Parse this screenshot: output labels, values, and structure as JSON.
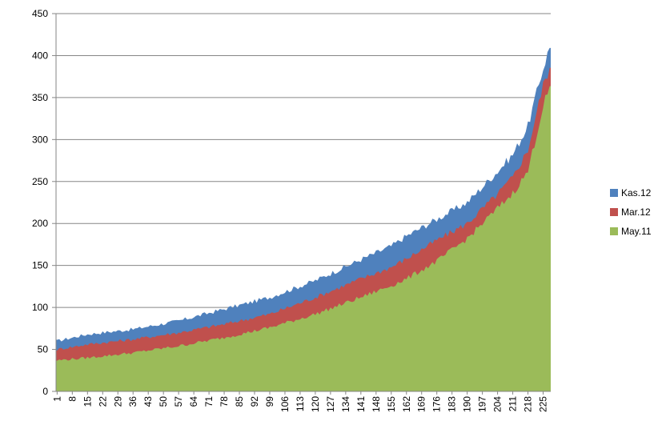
{
  "chart_data": {
    "type": "area",
    "stacked": false,
    "x_start": 1,
    "x_end": 228,
    "x_tick_labels": [
      "1",
      "8",
      "15",
      "22",
      "29",
      "36",
      "43",
      "50",
      "57",
      "64",
      "71",
      "78",
      "85",
      "92",
      "99",
      "106",
      "113",
      "120",
      "127",
      "134",
      "141",
      "148",
      "155",
      "162",
      "169",
      "176",
      "183",
      "190",
      "197",
      "204",
      "211",
      "218",
      "225"
    ],
    "y_ticks": [
      "0",
      "50",
      "100",
      "150",
      "200",
      "250",
      "300",
      "350",
      "400",
      "450"
    ],
    "ylim": [
      0,
      450
    ],
    "grid": true,
    "legend_position": "right",
    "series": [
      {
        "name": "Kas.12",
        "color": "#4f81bd",
        "points": [
          [
            1,
            60
          ],
          [
            15,
            68
          ],
          [
            36,
            74
          ],
          [
            57,
            84
          ],
          [
            78,
            98
          ],
          [
            99,
            112
          ],
          [
            120,
            132
          ],
          [
            141,
            157
          ],
          [
            155,
            173
          ],
          [
            162,
            185
          ],
          [
            176,
            205
          ],
          [
            190,
            225
          ],
          [
            204,
            262
          ],
          [
            211,
            282
          ],
          [
            218,
            316
          ],
          [
            225,
            385
          ],
          [
            228,
            410
          ]
        ]
      },
      {
        "name": "Mar.12",
        "color": "#c0504d",
        "points": [
          [
            1,
            50
          ],
          [
            15,
            56
          ],
          [
            36,
            62
          ],
          [
            57,
            70
          ],
          [
            78,
            80
          ],
          [
            99,
            92
          ],
          [
            120,
            112
          ],
          [
            141,
            134
          ],
          [
            155,
            148
          ],
          [
            162,
            158
          ],
          [
            176,
            180
          ],
          [
            190,
            200
          ],
          [
            204,
            235
          ],
          [
            211,
            255
          ],
          [
            218,
            288
          ],
          [
            225,
            365
          ],
          [
            228,
            385
          ]
        ]
      },
      {
        "name": "May.11",
        "color": "#9bbb59",
        "points": [
          [
            1,
            37
          ],
          [
            15,
            40
          ],
          [
            36,
            46
          ],
          [
            57,
            54
          ],
          [
            78,
            64
          ],
          [
            99,
            76
          ],
          [
            120,
            92
          ],
          [
            141,
            112
          ],
          [
            155,
            126
          ],
          [
            162,
            134
          ],
          [
            176,
            155
          ],
          [
            190,
            182
          ],
          [
            204,
            218
          ],
          [
            211,
            236
          ],
          [
            218,
            262
          ],
          [
            225,
            340
          ],
          [
            228,
            362
          ]
        ]
      }
    ]
  }
}
